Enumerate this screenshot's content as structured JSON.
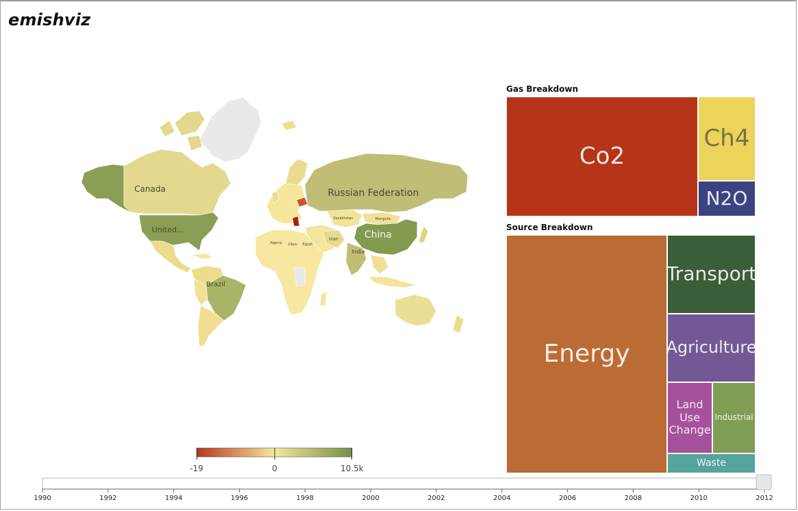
{
  "app": {
    "title": "emishviz"
  },
  "map": {
    "labels": {
      "canada": "Canada",
      "united_states": "United...",
      "russia": "Russian Federation",
      "china": "China",
      "brazil": "Brazil",
      "india": "India",
      "iran": "Iran",
      "kazakhstan": "Kazakhstan",
      "mongolia": "Mongolia",
      "algeria": "Algeria",
      "libya": "Libya",
      "egypt": "Egypt"
    }
  },
  "color_legend": {
    "min_label": "-19",
    "mid_label": "0",
    "max_label": "10.5k",
    "colors": [
      "#b5361c",
      "#f6e79a",
      "#748f45"
    ]
  },
  "gas_breakdown": {
    "title": "Gas Breakdown",
    "tiles": [
      {
        "label": "Co2",
        "color": "#b63418"
      },
      {
        "label": "Ch4",
        "color": "#ecd35a"
      },
      {
        "label": "N2O",
        "color": "#3b4380"
      }
    ]
  },
  "source_breakdown": {
    "title": "Source Breakdown",
    "tiles": [
      {
        "label": "Energy",
        "color": "#bb6b34"
      },
      {
        "label": "Transport",
        "color": "#3a5e38"
      },
      {
        "label": "Agriculture",
        "color": "#735896"
      },
      {
        "label": "Land Use Change",
        "color": "#a6519b"
      },
      {
        "label": "Industrial",
        "color": "#809d54"
      },
      {
        "label": "Waste",
        "color": "#55a49d"
      }
    ]
  },
  "timeline": {
    "years": [
      "1990",
      "1992",
      "1994",
      "1996",
      "1998",
      "2000",
      "2002",
      "2004",
      "2006",
      "2008",
      "2010",
      "2012"
    ],
    "selected_year": "2012"
  }
}
